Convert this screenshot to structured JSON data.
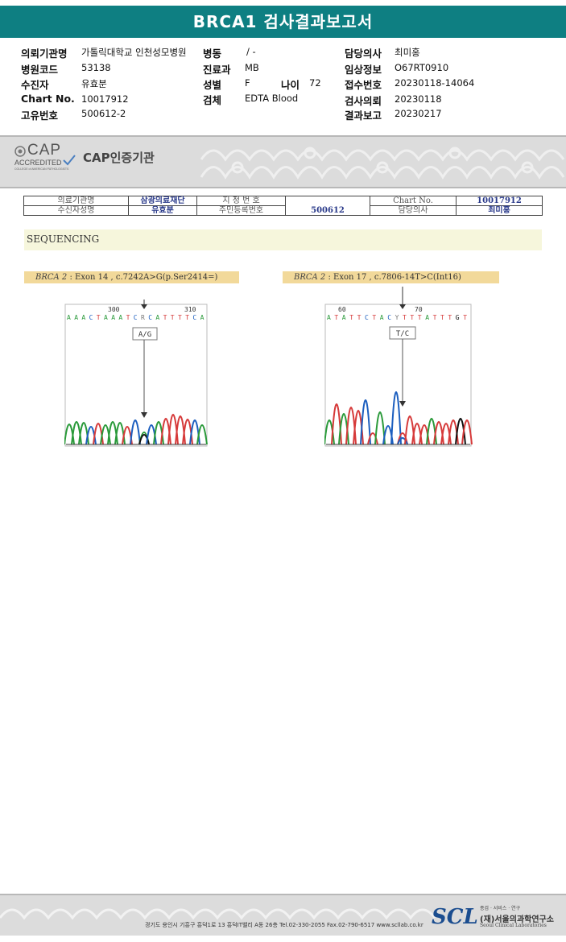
{
  "report": {
    "title": "BRCA1 검사결과보고서"
  },
  "header": {
    "institution_label": "의뢰기관명",
    "institution": "가톨릭대학교 인천성모병원",
    "ward_label": "병동",
    "ward": "/ -",
    "doctor_label": "담당의사",
    "doctor": "최미홍",
    "hospital_code_label": "병원코드",
    "hospital_code": "53138",
    "dept_label": "진료과",
    "dept": "MB",
    "clinical_label": "임상정보",
    "clinical": "O67RT0910",
    "patient_label": "수진자",
    "patient": "유효분",
    "sex_label": "성별",
    "sex": "F",
    "age_label": "나이",
    "age": "72",
    "receipt_label": "접수번호",
    "receipt": "20230118-14064",
    "chart_label": "Chart No.",
    "chart": "10017912",
    "specimen_label": "검체",
    "specimen": "EDTA Blood",
    "request_label": "검사의뢰",
    "request": "20230118",
    "unique_label": "고유번호",
    "unique": "500612-2",
    "result_label": "결과보고",
    "result": "20230217"
  },
  "banner": {
    "cap_big": "CAP",
    "cap_sub": "ACCREDITED",
    "cap_college": "COLLEGE of AMERICAN PATHOLOGISTS",
    "cert": "CAP인증기관"
  },
  "info_table": {
    "r1c1": "의료기관명",
    "r1c2": "삼광의료재단",
    "r1c3": "지 정 번 호",
    "r1c4": "",
    "r1c5": "Chart No.",
    "r1c6": "10017912",
    "r2c1": "수신자성명",
    "r2c2": "유효분",
    "r2c3": "주민등록번호",
    "r2c4": "500612",
    "r2c5": "담당의사",
    "r2c6": "최미홍"
  },
  "sequencing": {
    "label": "SEQUENCING",
    "variant1": {
      "gene": "BRCA 2",
      "desc": ": Exon 14 , c.7242A>G(p.Ser2414=)",
      "pos1": "300",
      "pos2": "310",
      "seq": "AAACTAAATCRCATTTTCA",
      "call": "A/G"
    },
    "variant2": {
      "gene": "BRCA 2",
      "desc": ": Exon 17 , c.7806-14T>C(Int16)",
      "pos1": "60",
      "pos2": "70",
      "seq": "ATATTCTACYTTTATTTGT",
      "call": "T/C"
    }
  },
  "footer": {
    "address": "경기도 용인시 기흥구 흥덕1로 13 흥덕IT밸리 A동 26층   Tel.02-330-2055   Fax.02-790-6517   www.scllab.co.kr",
    "logo": "SCL",
    "tagline": "종검 · 서비스 · 연구",
    "name": "(재)서울의과학연구소",
    "name_en": "Seoul Clinical Laboratories"
  },
  "colors": {
    "title_bar": "#0e7f82",
    "A": "#2a9a3a",
    "C": "#1d5fbf",
    "G": "#111111",
    "T": "#d63a3a"
  }
}
